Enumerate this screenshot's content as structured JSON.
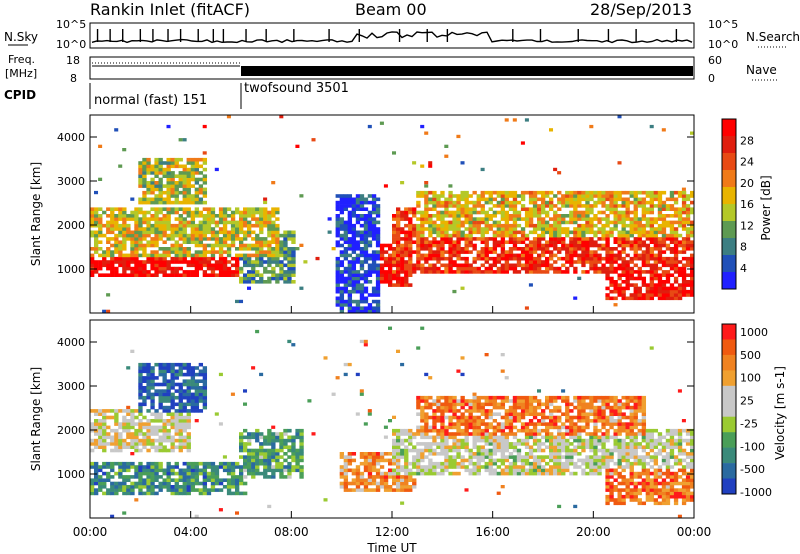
{
  "header": {
    "station": "Rankin Inlet (fitACF)",
    "beam": "Beam 00",
    "date": "28/Sep/2013"
  },
  "noise_panel": {
    "left_label": "N.Sky",
    "right_label": "N.Search",
    "tick_top": "10^5",
    "tick_bottom": "10^0",
    "sky_spike_times": [
      0.3,
      0.8,
      1.3,
      2.0,
      2.5,
      3.1,
      3.6,
      4.3,
      4.9,
      5.3,
      6.2,
      7.0,
      8.1,
      9.5,
      10.7,
      12.3,
      13.4,
      14.2,
      16.8,
      17.9,
      19.4,
      20.6,
      21.7,
      23.3
    ]
  },
  "freq_panel": {
    "left_label_1": "Freq.",
    "left_label_2": "[MHz]",
    "left_ticks": [
      "18",
      "8"
    ],
    "right_label": "Nave",
    "right_ticks": [
      "60",
      "0"
    ]
  },
  "cpid": {
    "label": "CPID",
    "segments": [
      {
        "name": "normal (fast) 151",
        "start": 0,
        "end": 6
      },
      {
        "name": "twofsound 3501",
        "start": 6,
        "end": 24
      }
    ]
  },
  "chart_data": [
    {
      "type": "heatmap",
      "title": "Power",
      "ylabel": "Slant Range [km]",
      "xlabel": "Time UT",
      "xlim": [
        0,
        24
      ],
      "ylim": [
        0,
        4500
      ],
      "y_ticks": [
        1000,
        2000,
        3000,
        4000
      ],
      "colorbar_label": "Power [dB]",
      "colorbar_ticks": [
        "4",
        "8",
        "12",
        "16",
        "20",
        "24",
        "28"
      ],
      "colorbar_colors": [
        "#2020ff",
        "#2050b8",
        "#3c7e82",
        "#5e9a52",
        "#b4c828",
        "#e8b400",
        "#f07a18",
        "#e84a14",
        "#e01e0e",
        "#ff0000"
      ],
      "bands": [
        {
          "t0": 0,
          "t1": 6,
          "r0": 800,
          "r1": 1250,
          "level": 0.95
        },
        {
          "t0": 6,
          "t1": 8.2,
          "r0": 700,
          "r1": 1900,
          "level": 0.3
        },
        {
          "t0": 0,
          "t1": 7.5,
          "r0": 1300,
          "r1": 2400,
          "level": 0.5
        },
        {
          "t0": 2,
          "t1": 4.6,
          "r0": 2500,
          "r1": 3500,
          "level": 0.45
        },
        {
          "t0": 10.5,
          "t1": 12.8,
          "r0": 600,
          "r1": 1600,
          "level": 0.9
        },
        {
          "t0": 12,
          "t1": 24,
          "r0": 900,
          "r1": 2400,
          "level": 0.82
        },
        {
          "t0": 13,
          "t1": 24,
          "r0": 1700,
          "r1": 2800,
          "level": 0.55
        },
        {
          "t0": 20.5,
          "t1": 24,
          "r0": 300,
          "r1": 1100,
          "level": 0.9
        },
        {
          "t0": 9.7,
          "t1": 11.5,
          "r0": 0,
          "r1": 2700,
          "level": 0.1
        }
      ]
    },
    {
      "type": "heatmap",
      "title": "Velocity",
      "ylabel": "Slant Range [km]",
      "xlabel": "Time UT",
      "xlim": [
        0,
        24
      ],
      "ylim": [
        0,
        4500
      ],
      "y_ticks": [
        1000,
        2000,
        3000,
        4000
      ],
      "colorbar_label": "Velocity [m s-1]",
      "colorbar_ticks": [
        "1000",
        "500",
        "100",
        "25",
        "-25",
        "-100",
        "-500",
        "-1000"
      ],
      "colorbar_colors": [
        "#2040c0",
        "#2a6aa0",
        "#3a8a7a",
        "#4a9e58",
        "#9aca32",
        "#c8c8c8",
        "#c8c8c8",
        "#f0a030",
        "#f08220",
        "#f05a10",
        "#ff1a1a"
      ],
      "bands": [
        {
          "t0": 0,
          "t1": 6.2,
          "r0": 500,
          "r1": 1300,
          "level": 0.25
        },
        {
          "t0": 6,
          "t1": 8.5,
          "r0": 900,
          "r1": 2000,
          "level": 0.3
        },
        {
          "t0": 0,
          "t1": 4,
          "r0": 1500,
          "r1": 2500,
          "level": 0.55
        },
        {
          "t0": 2,
          "t1": 4.7,
          "r0": 2400,
          "r1": 3500,
          "level": 0.1
        },
        {
          "t0": 10,
          "t1": 13,
          "r0": 600,
          "r1": 1500,
          "level": 0.75
        },
        {
          "t0": 12,
          "t1": 24,
          "r0": 1000,
          "r1": 2000,
          "level": 0.52
        },
        {
          "t0": 13,
          "t1": 22,
          "r0": 1900,
          "r1": 2800,
          "level": 0.78
        },
        {
          "t0": 20.5,
          "t1": 24,
          "r0": 300,
          "r1": 1100,
          "level": 0.8
        }
      ]
    }
  ],
  "x_axis": {
    "ticks": [
      "00:00",
      "04:00",
      "08:00",
      "12:00",
      "16:00",
      "20:00",
      "00:00"
    ],
    "label": "Time UT"
  }
}
